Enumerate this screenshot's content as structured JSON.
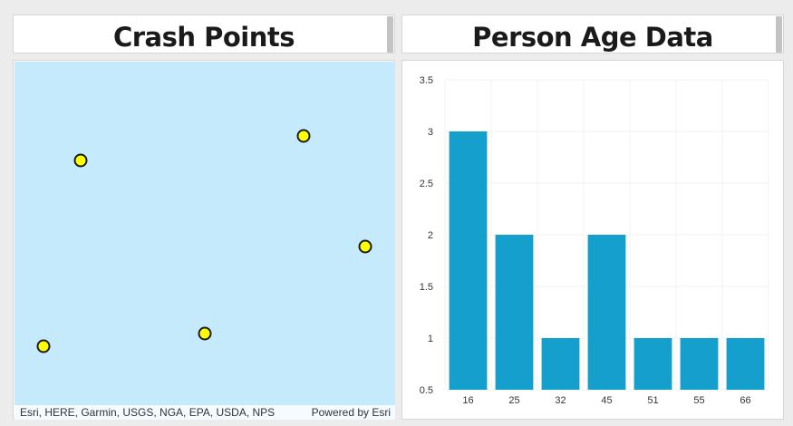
{
  "panels": {
    "left_title": "Crash Points",
    "right_title": "Person Age Data"
  },
  "map": {
    "attribution": "Esri, HERE, Garmin, USGS, NGA, EPA, USDA, NPS",
    "powered_by": "Powered by Esri",
    "background_color": "#c5eafb",
    "marker_color": "#ffff00",
    "marker_count": 5
  },
  "chart_data": {
    "type": "bar",
    "categories": [
      "16",
      "25",
      "32",
      "45",
      "51",
      "55",
      "66"
    ],
    "values": [
      3,
      2,
      1,
      2,
      1,
      1,
      1
    ],
    "y_ticks": [
      "0.5",
      "1",
      "1.5",
      "2",
      "2.5",
      "3",
      "3.5"
    ],
    "ylim": [
      0.5,
      3.5
    ],
    "grid": true,
    "bar_color": "#159fcd"
  }
}
